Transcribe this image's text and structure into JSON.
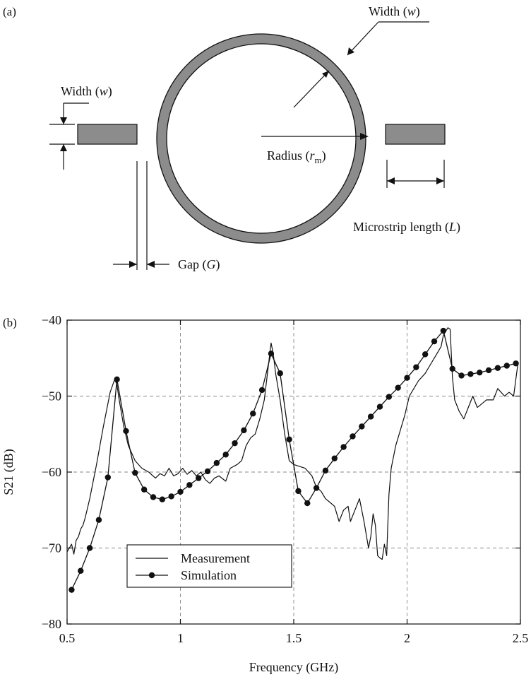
{
  "panel_a": {
    "label": "(a)",
    "width_top": {
      "prefix": "Width (",
      "var": "w",
      "suffix": ")"
    },
    "width_left": {
      "prefix": "Width (",
      "var": "w",
      "suffix": ")"
    },
    "radius": {
      "prefix": "Radius (",
      "var": "r",
      "sub": "m",
      "suffix": ")"
    },
    "microstrip": {
      "prefix": "Microstrip length (",
      "var": "L",
      "suffix": ")"
    },
    "gap": {
      "prefix": "Gap (",
      "var": "G",
      "suffix": ")"
    },
    "colors": {
      "metal": "#8c8c8c",
      "outline": "#111111"
    }
  },
  "panel_b": {
    "label": "(b)"
  },
  "chart_data": {
    "type": "line",
    "xlabel": "Frequency (GHz)",
    "ylabel": "S21 (dB)",
    "xlim": [
      0.5,
      2.5
    ],
    "ylim": [
      -80,
      -40
    ],
    "xticks": [
      0.5,
      1,
      1.5,
      2,
      2.5
    ],
    "xtick_labels": [
      "0.5",
      "1",
      "1.5",
      "2",
      "2.5"
    ],
    "yticks": [
      -80,
      -70,
      -60,
      -50,
      -40
    ],
    "ytick_labels": [
      "−80",
      "−70",
      "−60",
      "−50",
      "−40"
    ],
    "grid": true,
    "legend_position": "bottom-left",
    "series": [
      {
        "name": "Measurement",
        "style": "line",
        "x": [
          0.5,
          0.52,
          0.53,
          0.54,
          0.55,
          0.56,
          0.57,
          0.58,
          0.6,
          0.63,
          0.66,
          0.69,
          0.71,
          0.72,
          0.73,
          0.75,
          0.77,
          0.8,
          0.83,
          0.86,
          0.89,
          0.91,
          0.93,
          0.95,
          0.97,
          0.99,
          1.01,
          1.03,
          1.05,
          1.07,
          1.09,
          1.11,
          1.13,
          1.15,
          1.17,
          1.2,
          1.22,
          1.25,
          1.27,
          1.29,
          1.31,
          1.33,
          1.35,
          1.37,
          1.39,
          1.4,
          1.41,
          1.42,
          1.44,
          1.46,
          1.48,
          1.5,
          1.52,
          1.55,
          1.58,
          1.6,
          1.62,
          1.64,
          1.66,
          1.68,
          1.7,
          1.72,
          1.74,
          1.75,
          1.77,
          1.79,
          1.81,
          1.83,
          1.84,
          1.85,
          1.86,
          1.87,
          1.88,
          1.89,
          1.9,
          1.91,
          1.92,
          1.93,
          1.95,
          1.97,
          1.99,
          2.01,
          2.03,
          2.05,
          2.08,
          2.1,
          2.13,
          2.15,
          2.16,
          2.17,
          2.18,
          2.19,
          2.2,
          2.21,
          2.23,
          2.25,
          2.27,
          2.29,
          2.31,
          2.33,
          2.35,
          2.38,
          2.4,
          2.43,
          2.45,
          2.47,
          2.49
        ],
        "y": [
          -70.5,
          -69.5,
          -70.8,
          -69.0,
          -68.5,
          -67.5,
          -67.0,
          -66.0,
          -63.5,
          -59.0,
          -54.0,
          -49.5,
          -47.8,
          -48.5,
          -50.5,
          -54.0,
          -56.5,
          -58.5,
          -59.5,
          -60.0,
          -60.8,
          -60.2,
          -60.5,
          -59.5,
          -60.5,
          -60.2,
          -59.5,
          -60.3,
          -59.8,
          -60.5,
          -60.0,
          -61.0,
          -61.5,
          -60.8,
          -60.5,
          -61.2,
          -59.5,
          -59.0,
          -58.5,
          -56.5,
          -55.5,
          -55.0,
          -53.0,
          -50.5,
          -45.5,
          -43.0,
          -44.5,
          -47.0,
          -50.5,
          -55.0,
          -58.5,
          -59.0,
          -59.2,
          -59.5,
          -60.5,
          -62.0,
          -62.5,
          -63.5,
          -64.0,
          -64.5,
          -66.5,
          -65.0,
          -64.5,
          -66.5,
          -65.0,
          -63.5,
          -66.5,
          -70.0,
          -68.5,
          -65.5,
          -67.0,
          -71.0,
          -71.3,
          -71.5,
          -69.5,
          -71.0,
          -63.0,
          -59.5,
          -56.5,
          -54.5,
          -52.5,
          -50.0,
          -49.0,
          -48.0,
          -47.0,
          -46.0,
          -44.5,
          -43.5,
          -42.0,
          -41.5,
          -41.0,
          -41.2,
          -47.5,
          -50.5,
          -52.0,
          -53.0,
          -51.5,
          -50.0,
          -51.5,
          -51.0,
          -50.5,
          -50.5,
          -49.0,
          -50.0,
          -49.5,
          -50.0,
          -45.5
        ]
      },
      {
        "name": "Simulation",
        "style": "line-marker",
        "x": [
          0.52,
          0.56,
          0.6,
          0.64,
          0.68,
          0.72,
          0.76,
          0.8,
          0.84,
          0.88,
          0.92,
          0.96,
          1.0,
          1.04,
          1.08,
          1.12,
          1.16,
          1.2,
          1.24,
          1.28,
          1.32,
          1.36,
          1.4,
          1.44,
          1.48,
          1.52,
          1.56,
          1.6,
          1.64,
          1.68,
          1.72,
          1.76,
          1.8,
          1.84,
          1.88,
          1.92,
          1.96,
          2.0,
          2.04,
          2.08,
          2.12,
          2.16,
          2.2,
          2.24,
          2.28,
          2.32,
          2.36,
          2.4,
          2.44,
          2.48
        ],
        "y": [
          -75.5,
          -73.0,
          -70.0,
          -66.3,
          -60.7,
          -47.8,
          -54.6,
          -60.1,
          -62.3,
          -63.3,
          -63.6,
          -63.2,
          -62.6,
          -61.7,
          -60.8,
          -59.9,
          -58.8,
          -57.7,
          -56.2,
          -54.5,
          -52.3,
          -49.2,
          -44.4,
          -47.0,
          -55.7,
          -62.5,
          -64.1,
          -62.1,
          -59.8,
          -58.2,
          -56.7,
          -55.3,
          -54.0,
          -52.7,
          -51.4,
          -50.1,
          -48.9,
          -47.6,
          -46.2,
          -44.5,
          -42.8,
          -41.4,
          -46.4,
          -47.3,
          -47.1,
          -46.9,
          -46.6,
          -46.3,
          -46.0,
          -45.7
        ]
      }
    ]
  }
}
